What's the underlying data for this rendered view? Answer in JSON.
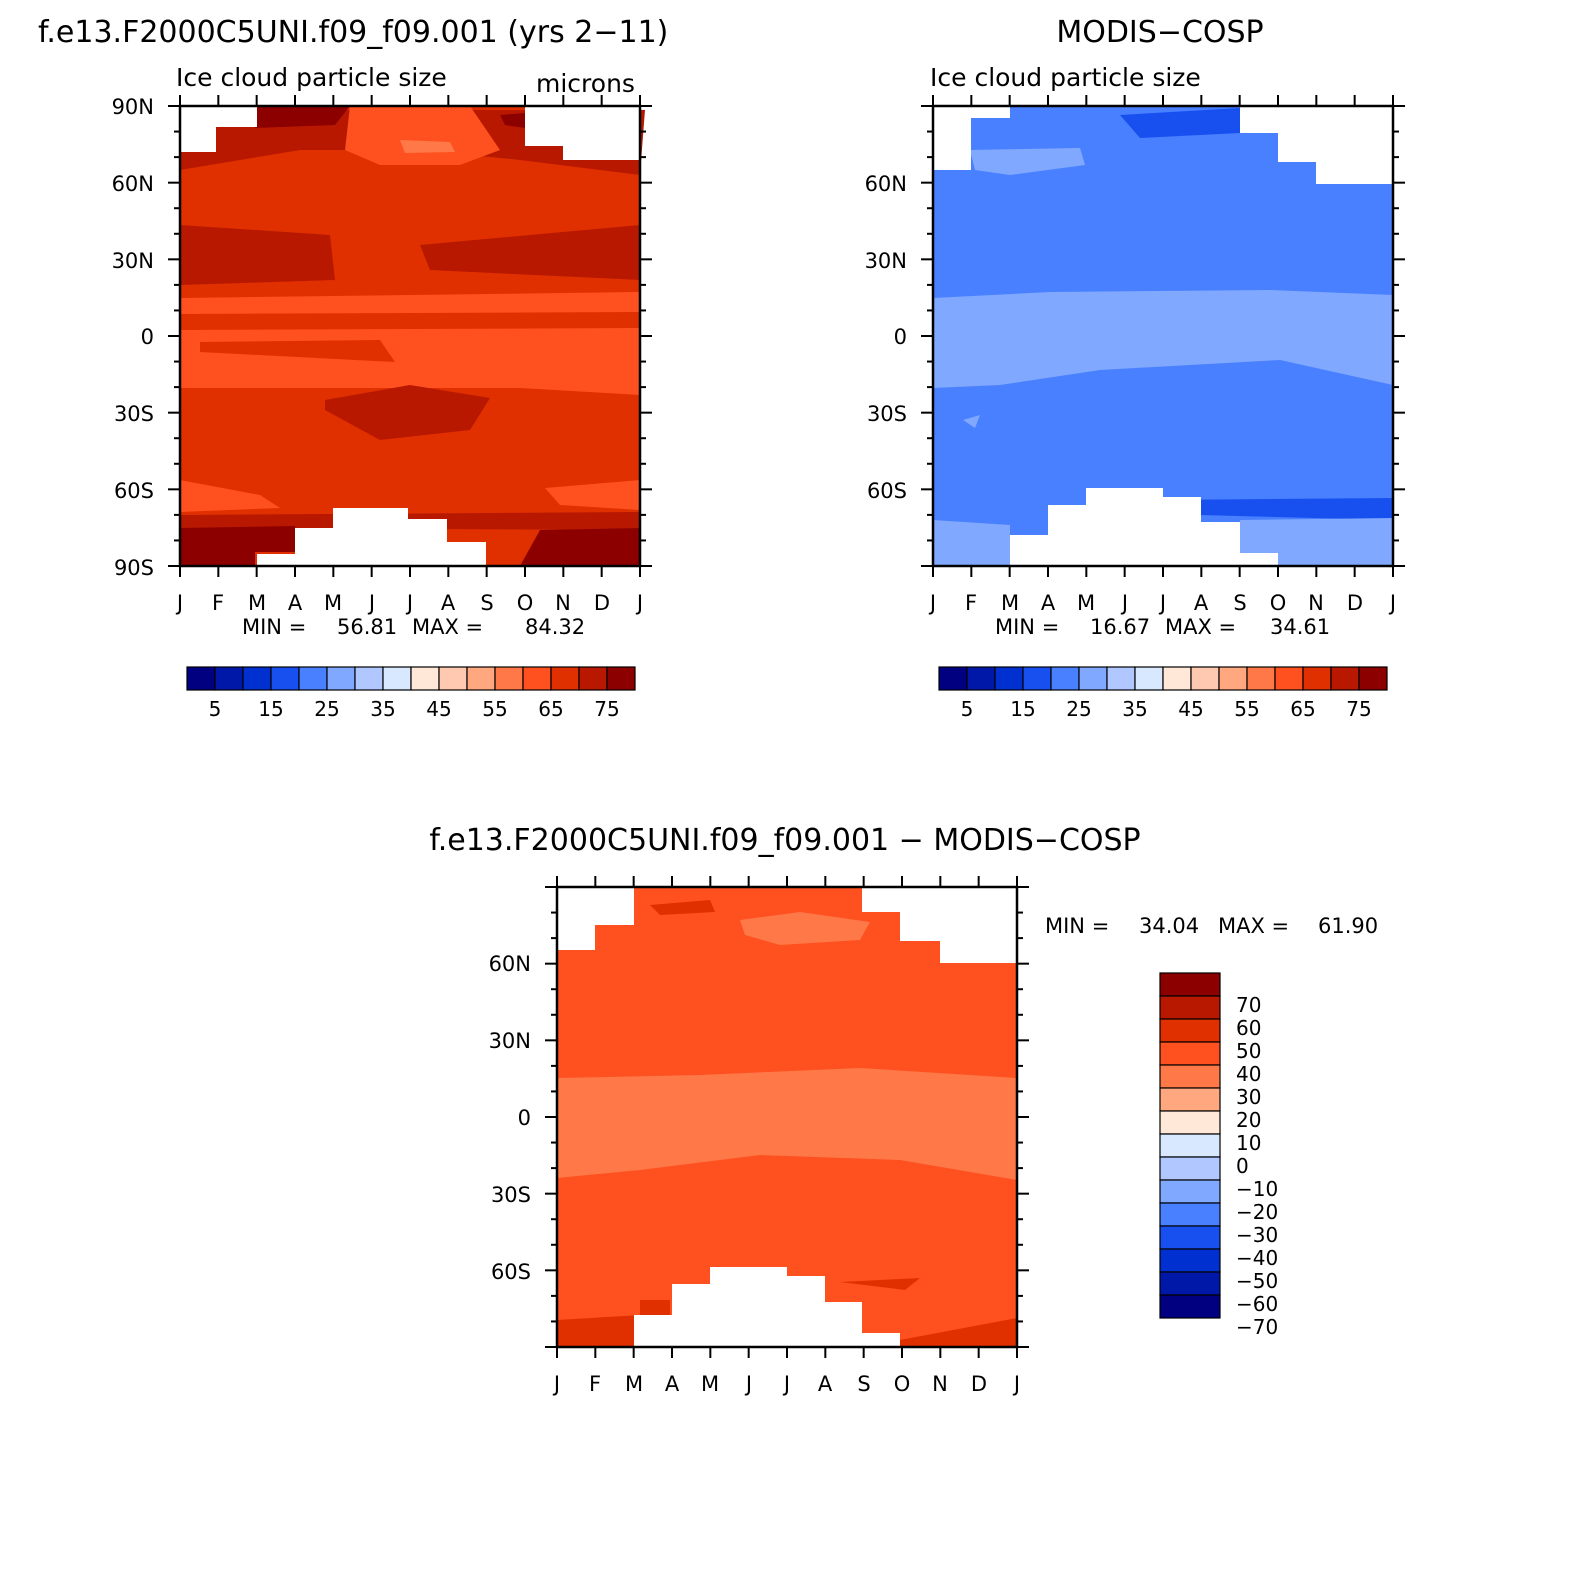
{
  "chart_data": [
    {
      "type": "heatmap",
      "panel": "model",
      "title": "f.e13.F2000C5UNI.f09_f09.001 (yrs 2−11)",
      "subtitle": "Ice cloud particle size",
      "units": "microns",
      "x_tick_labels": [
        "J",
        "F",
        "M",
        "A",
        "M",
        "J",
        "J",
        "A",
        "S",
        "O",
        "N",
        "D",
        "J"
      ],
      "y_tick_labels": [
        "90N",
        "60N",
        "30N",
        "0",
        "30S",
        "60S",
        "90S"
      ],
      "xlabel": "",
      "ylabel": "",
      "ylim": [
        -90,
        90
      ],
      "min_label": "MIN =",
      "min_value": "56.81",
      "max_label": "MAX =",
      "max_value": "84.32",
      "colorbar_labels": [
        "5",
        "15",
        "25",
        "35",
        "45",
        "55",
        "65",
        "75"
      ]
    },
    {
      "type": "heatmap",
      "panel": "obs",
      "title": "MODIS−COSP",
      "subtitle": "Ice cloud particle size",
      "units": "",
      "x_tick_labels": [
        "J",
        "F",
        "M",
        "A",
        "M",
        "J",
        "J",
        "A",
        "S",
        "O",
        "N",
        "D",
        "J"
      ],
      "y_tick_labels": [
        "60N",
        "30N",
        "0",
        "30S",
        "60S"
      ],
      "xlabel": "",
      "ylabel": "",
      "ylim": [
        -90,
        90
      ],
      "min_label": "MIN =",
      "min_value": "16.67",
      "max_label": "MAX =",
      "max_value": "34.61",
      "colorbar_labels": [
        "5",
        "15",
        "25",
        "35",
        "45",
        "55",
        "65",
        "75"
      ]
    },
    {
      "type": "heatmap",
      "panel": "diff",
      "title": "f.e13.F2000C5UNI.f09_f09.001 − MODIS−COSP",
      "subtitle": "",
      "units": "",
      "x_tick_labels": [
        "J",
        "F",
        "M",
        "A",
        "M",
        "J",
        "J",
        "A",
        "S",
        "O",
        "N",
        "D",
        "J"
      ],
      "y_tick_labels": [
        "60N",
        "30N",
        "0",
        "30S",
        "60S"
      ],
      "xlabel": "",
      "ylabel": "",
      "ylim": [
        -90,
        90
      ],
      "min_label": "MIN =",
      "min_value": "34.04",
      "max_label": "MAX =",
      "max_value": "61.90",
      "colorbar_labels": [
        "70",
        "60",
        "50",
        "40",
        "30",
        "20",
        "10",
        "0",
        "−10",
        "−20",
        "−30",
        "−40",
        "−50",
        "−60",
        "−70"
      ]
    }
  ],
  "colors": {
    "seq_palette": [
      "#000080",
      "#0018a8",
      "#0030d0",
      "#1850f0",
      "#4880ff",
      "#80a8ff",
      "#b0c8ff",
      "#d8e8ff",
      "#ffe8d8",
      "#ffc8b0",
      "#ffa880",
      "#ff7848",
      "#ff5020",
      "#e03000",
      "#b81800",
      "#8c0000"
    ],
    "diff_palette": [
      "#8c0000",
      "#b81800",
      "#e03000",
      "#ff5020",
      "#ff7848",
      "#ffa880",
      "#ffe8d8",
      "#d8e8ff",
      "#b0c8ff",
      "#80a8ff",
      "#4880ff",
      "#1850f0",
      "#0030d0",
      "#0018a8",
      "#000080"
    ]
  }
}
